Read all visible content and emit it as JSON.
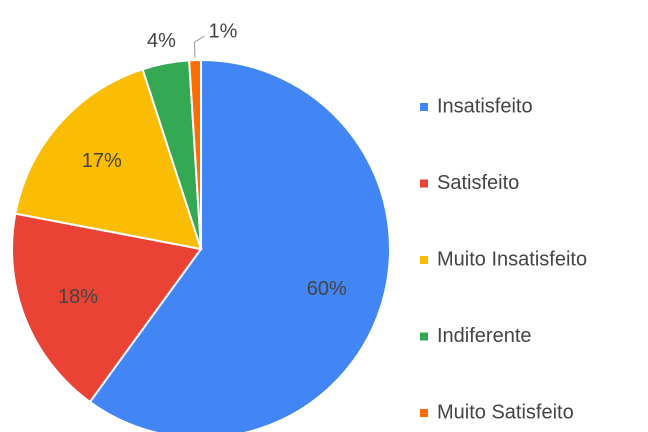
{
  "chart_data": {
    "type": "pie",
    "categories": [
      "Insatisfeito",
      "Satisfeito",
      "Muito Insatisfeito",
      "Indiferente",
      "Muito Satisfeito"
    ],
    "values": [
      60,
      18,
      17,
      4,
      1
    ],
    "value_labels": [
      "60%",
      "18%",
      "17%",
      "4%",
      "1%"
    ],
    "colors": [
      "#4285f4",
      "#ea4335",
      "#fbbc04",
      "#34a853",
      "#ff6d01"
    ],
    "legend": "right"
  }
}
